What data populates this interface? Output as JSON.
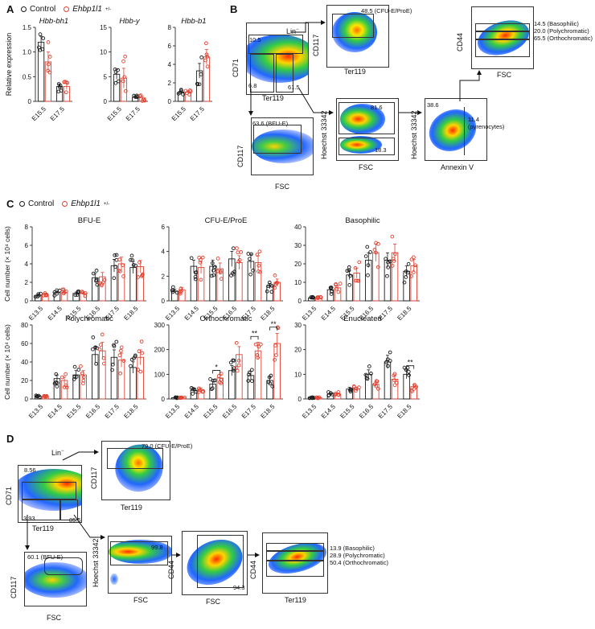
{
  "colors": {
    "control": "#1a1a1a",
    "mutant": "#e2402f"
  },
  "panelA": {
    "letter": "A",
    "legend": {
      "control": "Control",
      "mutant": "Ehbp1l1"
    },
    "ylabel": "Relative expression",
    "charts": [
      {
        "title": "Hbb-bh1",
        "ylim": [
          0,
          1.5
        ],
        "ticks": [
          "0",
          "0.5",
          "1.0",
          "1.5"
        ],
        "categories": [
          "E15.5",
          "E17.5"
        ],
        "control": [
          1.2,
          0.3
        ],
        "mutant": [
          0.8,
          0.3
        ],
        "control_err": [
          0.12,
          0.05
        ],
        "mutant_err": [
          0.2,
          0.06
        ]
      },
      {
        "title": "Hbb-y",
        "ylim": [
          0,
          15
        ],
        "ticks": [
          "0",
          "5",
          "10",
          "15"
        ],
        "categories": [
          "E15.5",
          "E17.5"
        ],
        "control": [
          5.5,
          0.8
        ],
        "mutant": [
          4.7,
          0.7
        ],
        "control_err": [
          1.0,
          0.3
        ],
        "mutant_err": [
          2.0,
          0.3
        ]
      },
      {
        "title": "Hbb-b1",
        "ylim": [
          0,
          8
        ],
        "ticks": [
          "0",
          "2",
          "4",
          "6",
          "8"
        ],
        "categories": [
          "E15.5",
          "E17.5"
        ],
        "control": [
          1.0,
          3.3
        ],
        "mutant": [
          1.0,
          4.8
        ],
        "control_err": [
          0.15,
          0.8
        ],
        "mutant_err": [
          0.15,
          0.8
        ]
      }
    ]
  },
  "panelB": {
    "letter": "B",
    "lin": "Lin",
    "axes": {
      "cd71": "CD71",
      "ter119": "Ter119",
      "cd117": "CD117",
      "fsc": "FSC",
      "cd44": "CD44",
      "hoechst": "Hoechst 33342",
      "annexin": "Annexin V"
    },
    "main": {
      "g1": "10.5",
      "g2": "6.8",
      "g3": "61.5"
    },
    "cfu": "48.5 (CFU-E/ProE)",
    "bfu": "63.6 (BFU-E)",
    "hoechst": {
      "top": "81.6",
      "bottom": "18.3"
    },
    "annexin": {
      "left": "38.6",
      "right": "11.4",
      "right_note": "(pyrenocytes)"
    },
    "cd44": [
      "14.5 (Basophilic)",
      "20.0 (Polychromatic)",
      "65.5 (Orthochromatic)"
    ]
  },
  "panelC": {
    "letter": "C",
    "legend": {
      "control": "Control",
      "mutant": "Ehbp1l1"
    },
    "ylabel": "Cell number (× 10⁴ cells)",
    "categories": [
      "E13.5",
      "E14.5",
      "E15.5",
      "E16.5",
      "E17.5",
      "E18.5"
    ],
    "charts": [
      {
        "title": "BFU-E",
        "ylim": [
          0,
          8
        ],
        "ticks": [
          "0",
          "2",
          "4",
          "6",
          "8"
        ],
        "control": [
          0.6,
          0.9,
          0.8,
          2.5,
          3.8,
          3.6
        ],
        "mutant": [
          0.7,
          0.9,
          0.8,
          2.6,
          4.0,
          3.7
        ],
        "stars": []
      },
      {
        "title": "CFU-E/ProE",
        "ylim": [
          0,
          6
        ],
        "ticks": [
          "0",
          "2",
          "4",
          "6"
        ],
        "control": [
          0.8,
          2.8,
          2.8,
          3.4,
          3.2,
          1.2
        ],
        "mutant": [
          0.9,
          2.7,
          2.6,
          3.1,
          3.1,
          1.5
        ],
        "stars": []
      },
      {
        "title": "Basophilic",
        "ylim": [
          0,
          40
        ],
        "ticks": [
          "0",
          "10",
          "20",
          "30",
          "40"
        ],
        "control": [
          1.5,
          6,
          14,
          22,
          22,
          16
        ],
        "mutant": [
          1.5,
          7,
          15,
          26,
          26,
          19
        ],
        "stars": []
      },
      {
        "title": "Polychromatic",
        "ylim": [
          0,
          80
        ],
        "ticks": [
          "0",
          "20",
          "40",
          "60",
          "80"
        ],
        "control": [
          3,
          22,
          26,
          48,
          45,
          34
        ],
        "mutant": [
          3,
          20,
          26,
          52,
          42,
          45
        ],
        "stars": []
      },
      {
        "title": "Orthochromatic",
        "ylim": [
          0,
          300
        ],
        "ticks": [
          "0",
          "100",
          "200",
          "300"
        ],
        "control": [
          5,
          35,
          60,
          115,
          95,
          75
        ],
        "mutant": [
          5,
          38,
          85,
          180,
          195,
          225
        ],
        "stars": [
          {
            "cat": 2,
            "label": "*"
          },
          {
            "cat": 4,
            "label": "**"
          },
          {
            "cat": 5,
            "label": "**"
          }
        ]
      },
      {
        "title": "Enucleated",
        "ylim": [
          0,
          30
        ],
        "ticks": [
          "0",
          "10",
          "20",
          "30"
        ],
        "control": [
          0.5,
          2,
          4,
          10,
          15,
          10
        ],
        "mutant": [
          0.5,
          2,
          4,
          6,
          8,
          5
        ],
        "stars": [
          {
            "cat": 5,
            "label": "**"
          }
        ]
      }
    ]
  },
  "panelD": {
    "letter": "D",
    "lin": "Lin",
    "main": {
      "g1": "8.56",
      "g2": "3.93",
      "g3": "85.5"
    },
    "cfu": "79.0 (CFU-E/ProE)",
    "bfu": "60.1 (BFU-E)",
    "hoechst": "99.8",
    "cd44fsc": "94.3",
    "cd44ter": [
      "13.9 (Basophilic)",
      "28.9 (Polychromatic)",
      "50.4 (Orthochromatic)"
    ]
  }
}
